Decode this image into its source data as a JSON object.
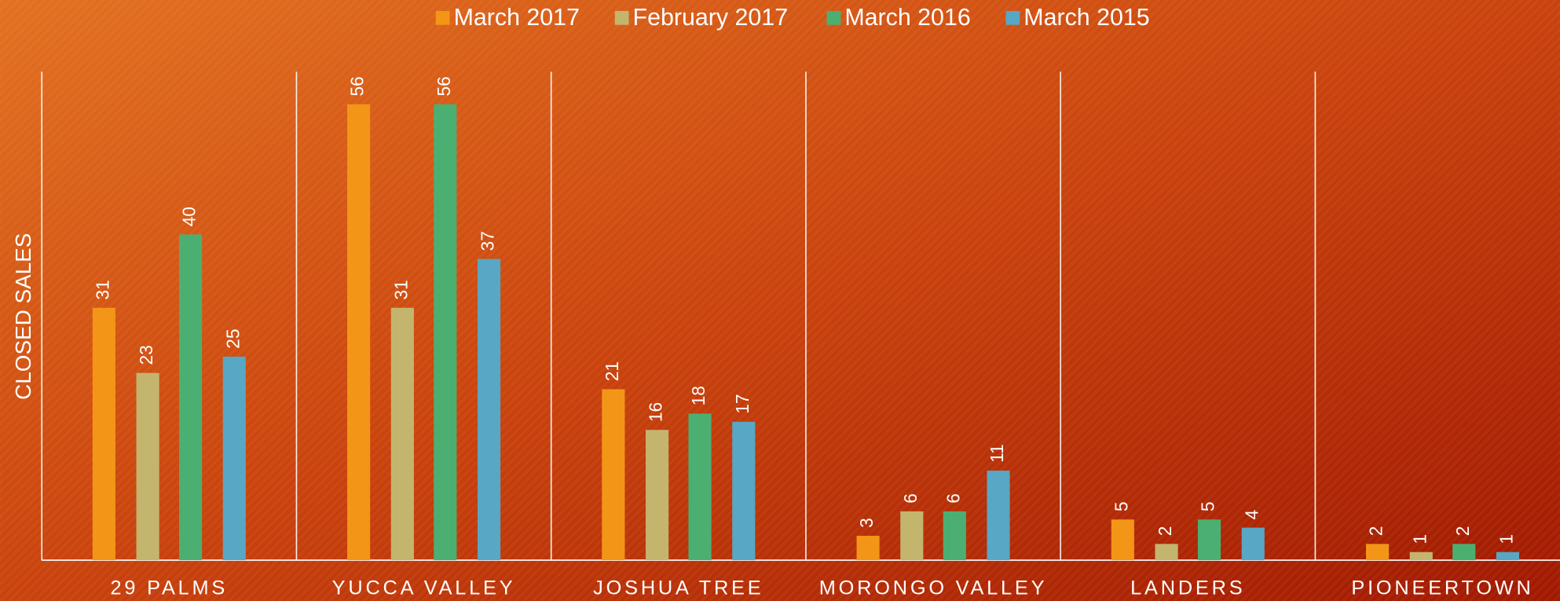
{
  "chart_data": {
    "type": "bar",
    "y_axis_label": "CLOSED SALES",
    "categories": [
      "29 PALMS",
      "YUCCA VALLEY",
      "JOSHUA TREE",
      "MORONGO VALLEY",
      "LANDERS",
      "PIONEERTOWN"
    ],
    "series": [
      {
        "name": "March 2017",
        "color": "#f39517",
        "values": [
          31,
          56,
          21,
          3,
          5,
          2
        ]
      },
      {
        "name": "February 2017",
        "color": "#c4b56e",
        "values": [
          23,
          31,
          16,
          6,
          2,
          1
        ]
      },
      {
        "name": "March 2016",
        "color": "#4caf72",
        "values": [
          40,
          56,
          18,
          6,
          5,
          2
        ]
      },
      {
        "name": "March 2015",
        "color": "#58a7c4",
        "values": [
          25,
          37,
          17,
          11,
          4,
          1
        ]
      }
    ],
    "ylim": [
      0,
      60
    ],
    "legend": "top",
    "data_labels": true
  }
}
